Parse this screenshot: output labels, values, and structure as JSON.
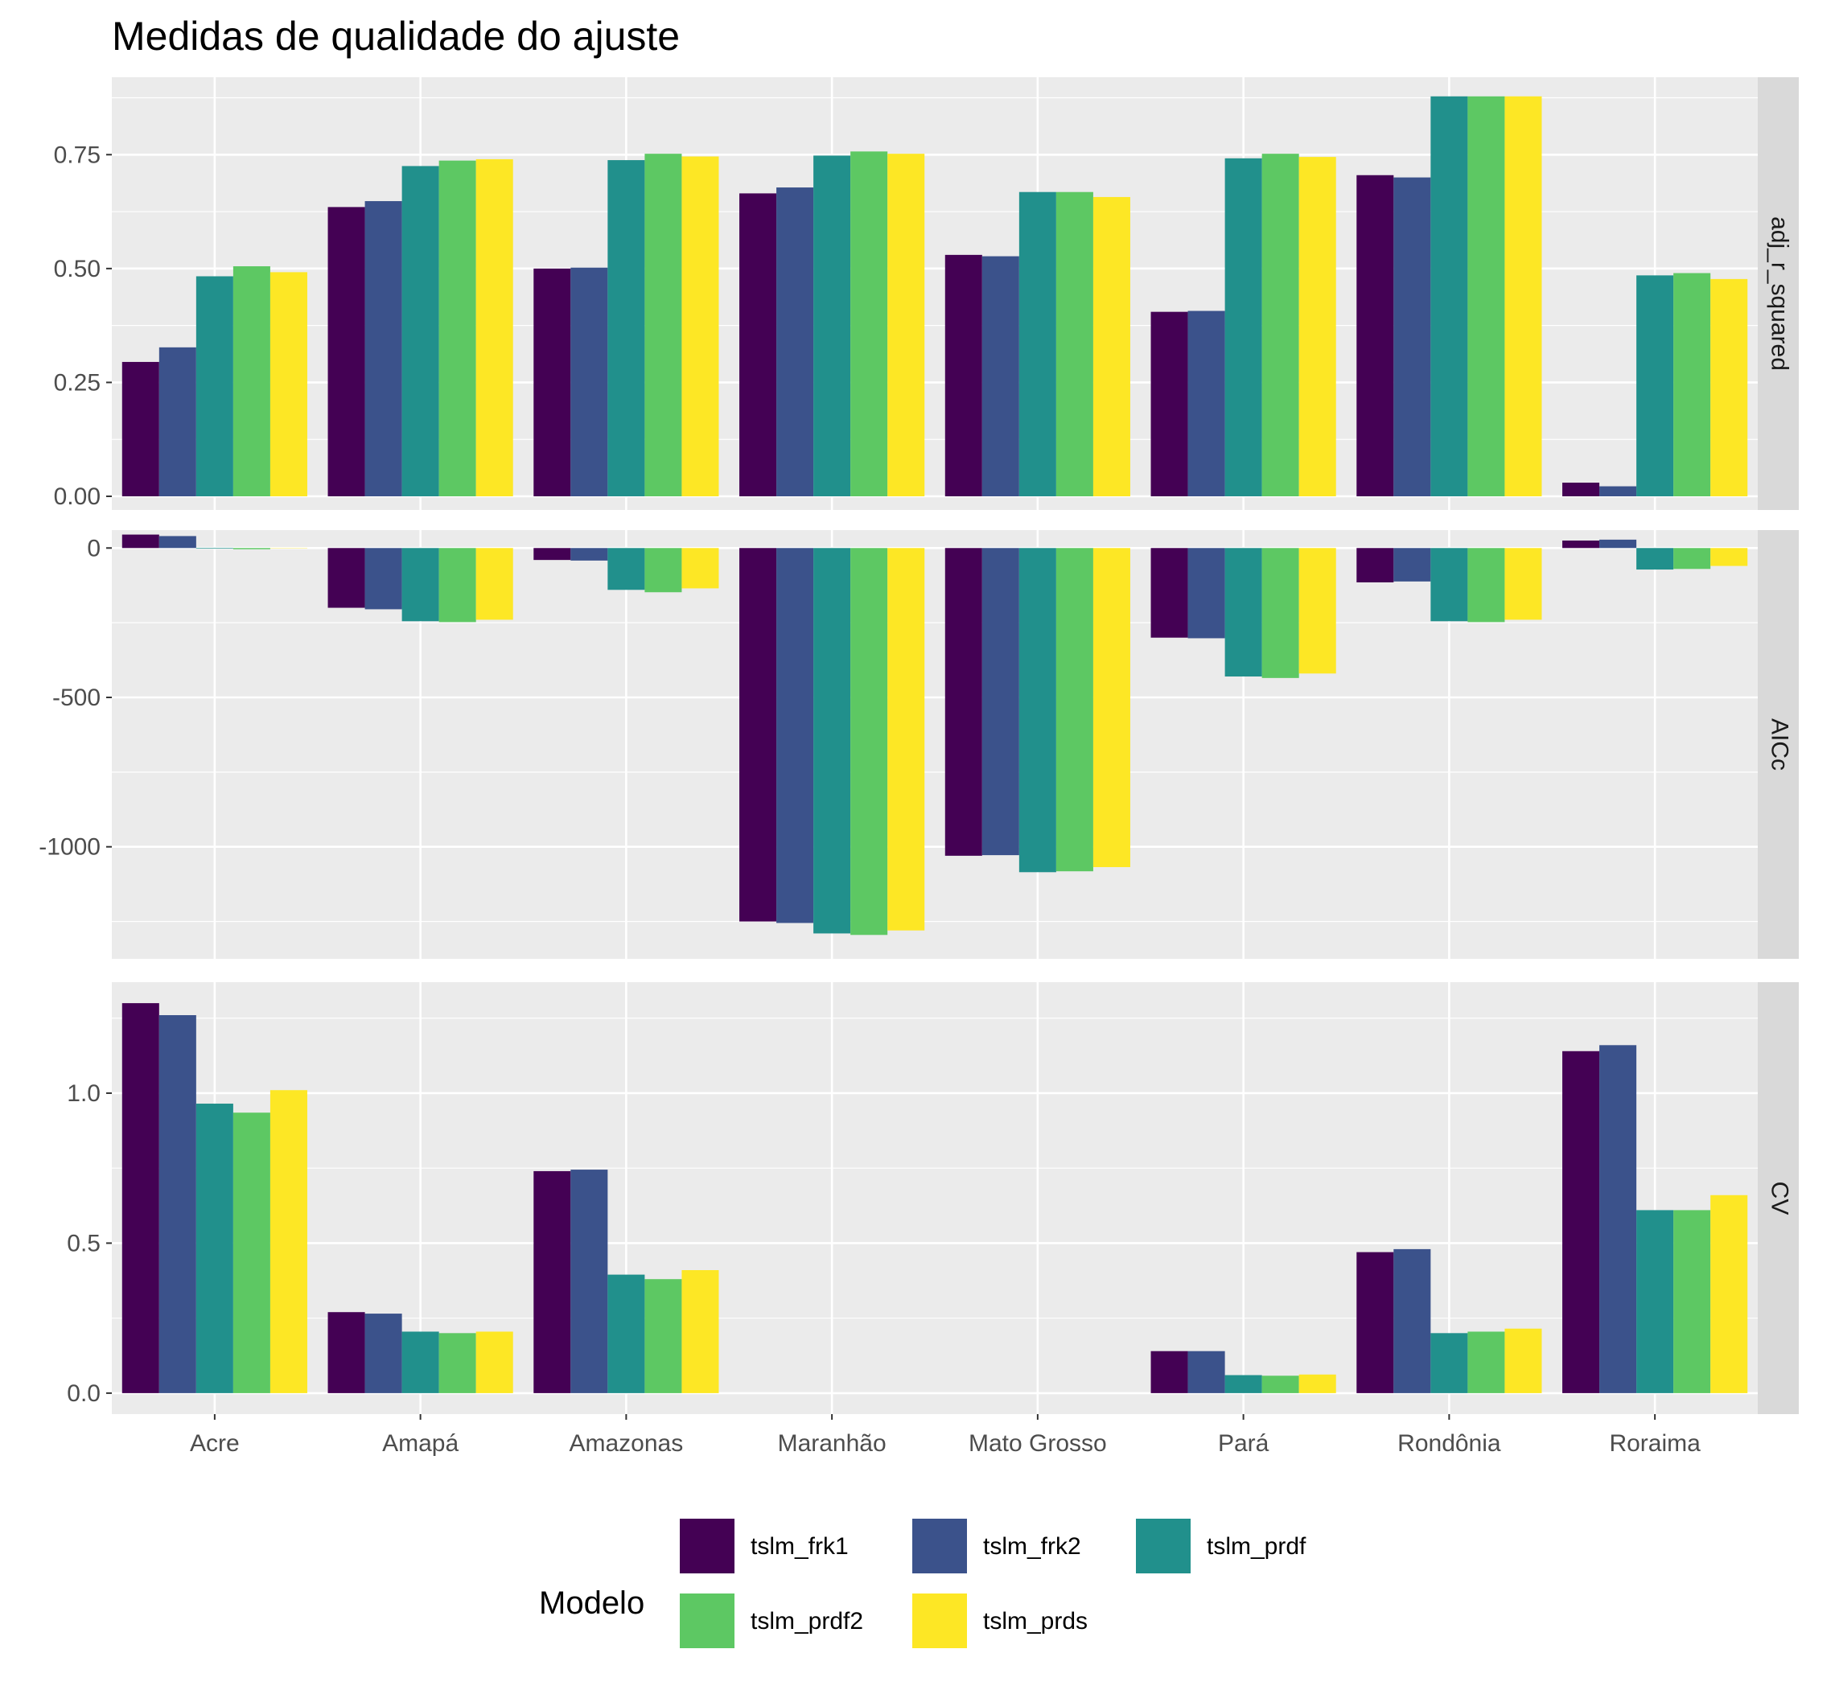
{
  "chart_data": {
    "type": "bar",
    "title": "Medidas de qualidade do ajuste",
    "xlabel": "",
    "ylabel": "",
    "categories": [
      "Acre",
      "Amapá",
      "Amazonas",
      "Maranhão",
      "Mato Grosso",
      "Pará",
      "Rondônia",
      "Roraima"
    ],
    "legend": {
      "title": "Modelo",
      "position": "bottom"
    },
    "grid": true,
    "series_colors": {
      "tslm_frk1": "#440154",
      "tslm_frk2": "#3B528B",
      "tslm_prdf": "#21908C",
      "tslm_prdf2": "#5DC863",
      "tslm_prds": "#FDE725"
    },
    "panels": [
      {
        "name": "adj_r_squared",
        "ylim": [
          -0.03,
          0.92
        ],
        "yticks": [
          0.0,
          0.25,
          0.5,
          0.75
        ],
        "ytick_labels": [
          "0.00",
          "0.25",
          "0.50",
          "0.75"
        ],
        "series": [
          {
            "name": "tslm_frk1",
            "values": [
              0.295,
              0.635,
              0.5,
              0.665,
              0.53,
              0.405,
              0.705,
              0.03
            ]
          },
          {
            "name": "tslm_frk2",
            "values": [
              0.327,
              0.648,
              0.502,
              0.678,
              0.527,
              0.407,
              0.7,
              0.022
            ]
          },
          {
            "name": "tslm_prdf",
            "values": [
              0.483,
              0.725,
              0.738,
              0.748,
              0.668,
              0.742,
              0.878,
              0.485
            ]
          },
          {
            "name": "tslm_prdf2",
            "values": [
              0.505,
              0.737,
              0.752,
              0.757,
              0.668,
              0.752,
              0.878,
              0.49
            ]
          },
          {
            "name": "tslm_prds",
            "values": [
              0.492,
              0.74,
              0.746,
              0.752,
              0.657,
              0.745,
              0.878,
              0.477
            ]
          }
        ]
      },
      {
        "name": "AICc",
        "ylim": [
          -1375,
          60
        ],
        "yticks": [
          -1000,
          -500,
          0
        ],
        "ytick_labels": [
          "-1000",
          "-500",
          "0"
        ],
        "series": [
          {
            "name": "tslm_frk1",
            "values": [
              45,
              -200,
              -40,
              -1250,
              -1030,
              -300,
              -115,
              25
            ]
          },
          {
            "name": "tslm_frk2",
            "values": [
              40,
              -205,
              -42,
              -1255,
              -1028,
              -302,
              -112,
              28
            ]
          },
          {
            "name": "tslm_prdf",
            "values": [
              -2,
              -245,
              -140,
              -1290,
              -1085,
              -430,
              -245,
              -72
            ]
          },
          {
            "name": "tslm_prdf2",
            "values": [
              -4,
              -248,
              -148,
              -1295,
              -1082,
              -435,
              -248,
              -70
            ]
          },
          {
            "name": "tslm_prds",
            "values": [
              -1,
              -240,
              -135,
              -1280,
              -1068,
              -420,
              -240,
              -60
            ]
          }
        ]
      },
      {
        "name": "CV",
        "ylim": [
          -0.07,
          1.37
        ],
        "yticks": [
          0.0,
          0.5,
          1.0
        ],
        "ytick_labels": [
          "0.0",
          "0.5",
          "1.0"
        ],
        "series": [
          {
            "name": "tslm_frk1",
            "values": [
              1.3,
              0.27,
              0.74,
              0,
              0,
              0.14,
              0.47,
              1.14
            ]
          },
          {
            "name": "tslm_frk2",
            "values": [
              1.26,
              0.265,
              0.745,
              0,
              0,
              0.14,
              0.48,
              1.16
            ]
          },
          {
            "name": "tslm_prdf",
            "values": [
              0.965,
              0.205,
              0.395,
              0,
              0,
              0.06,
              0.2,
              0.61
            ]
          },
          {
            "name": "tslm_prdf2",
            "values": [
              0.935,
              0.2,
              0.38,
              0,
              0,
              0.058,
              0.205,
              0.61
            ]
          },
          {
            "name": "tslm_prds",
            "values": [
              1.01,
              0.205,
              0.41,
              0,
              0,
              0.062,
              0.215,
              0.66
            ]
          }
        ]
      }
    ]
  }
}
